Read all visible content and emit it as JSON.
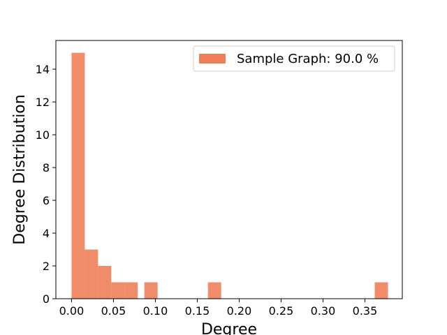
{
  "chart_data": {
    "type": "bar",
    "title": "",
    "xlabel": "Degree",
    "ylabel": "Degree Distribution",
    "xlim": [
      -0.0187,
      0.3946
    ],
    "ylim": [
      0,
      15.75
    ],
    "x_ticks": [
      0.0,
      0.05,
      0.1,
      0.15,
      0.2,
      0.25,
      0.3,
      0.35
    ],
    "x_tick_labels": [
      "0.00",
      "0.05",
      "0.10",
      "0.15",
      "0.20",
      "0.25",
      "0.30",
      "0.35"
    ],
    "y_ticks": [
      0,
      2,
      4,
      6,
      8,
      10,
      12,
      14
    ],
    "y_tick_labels": [
      "0",
      "2",
      "4",
      "6",
      "8",
      "10",
      "12",
      "14"
    ],
    "grid": false,
    "legend_position": "top-right",
    "bar_color": "#EE7F5A",
    "series": [
      {
        "name": "Sample Graph: 90.0 %",
        "bins": [
          {
            "x0": 0.0,
            "x1": 0.0158,
            "count": 15
          },
          {
            "x0": 0.0158,
            "x1": 0.0316,
            "count": 3
          },
          {
            "x0": 0.0316,
            "x1": 0.0474,
            "count": 2
          },
          {
            "x0": 0.0474,
            "x1": 0.0632,
            "count": 1
          },
          {
            "x0": 0.0632,
            "x1": 0.079,
            "count": 1
          },
          {
            "x0": 0.0869,
            "x1": 0.1027,
            "count": 1
          },
          {
            "x0": 0.1627,
            "x1": 0.1785,
            "count": 1
          },
          {
            "x0": 0.3617,
            "x1": 0.3775,
            "count": 1
          }
        ]
      }
    ]
  }
}
